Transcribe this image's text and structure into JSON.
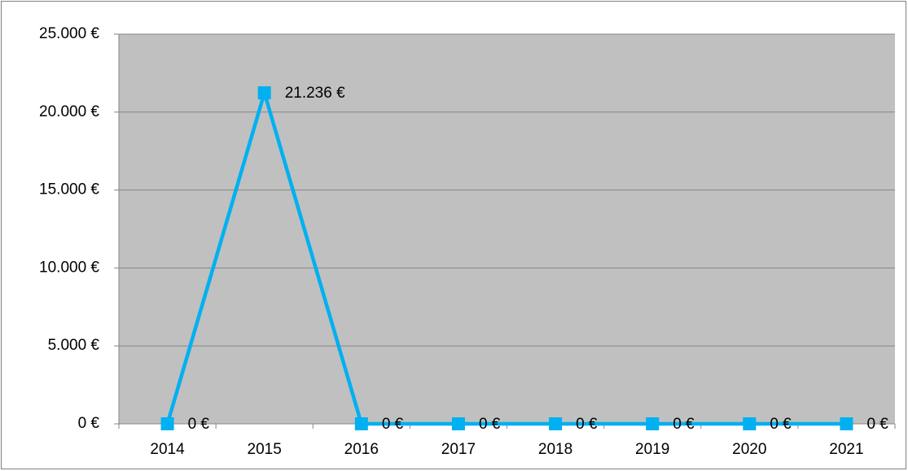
{
  "chart_data": {
    "type": "line",
    "categories": [
      "2014",
      "2015",
      "2016",
      "2017",
      "2018",
      "2019",
      "2020",
      "2021"
    ],
    "values": [
      0,
      21236,
      0,
      0,
      0,
      0,
      0,
      0
    ],
    "value_labels": [
      "0 €",
      "21.236 €",
      "0 €",
      "0 €",
      "0 €",
      "0 €",
      "0 €",
      "0 €"
    ],
    "color": "#00b0f0",
    "ylim": [
      0,
      25000
    ],
    "yticks": [
      {
        "value": 0,
        "label": "0 €"
      },
      {
        "value": 5000,
        "label": "5.000 €"
      },
      {
        "value": 10000,
        "label": "10.000 €"
      },
      {
        "value": 15000,
        "label": "15.000 €"
      },
      {
        "value": 20000,
        "label": "20.000 €"
      },
      {
        "value": 25000,
        "label": "25.000 €"
      }
    ],
    "grid": true
  }
}
